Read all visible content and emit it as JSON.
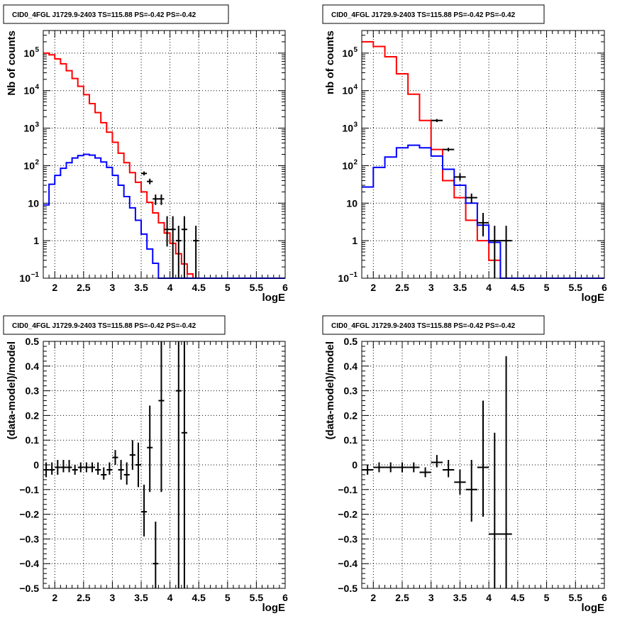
{
  "chart_data": [
    {
      "type": "line",
      "subtype": "step-histogram",
      "title": "CID0_4FGL J1729.9-2403 TS=115.88 PS=-0.42 PS=-0.42",
      "xlabel": "logE",
      "ylabel": "Nb of counts",
      "xlim": [
        1.8,
        6.0
      ],
      "ylim": [
        0.1,
        400000
      ],
      "yscale": "log",
      "grid": true,
      "x_ticks": [
        "2",
        "2.5",
        "3",
        "3.5",
        "4",
        "4.5",
        "5",
        "5.5",
        "6"
      ],
      "x_tick_values": [
        2,
        2.5,
        3,
        3.5,
        4,
        4.5,
        5,
        5.5,
        6
      ],
      "y_tick_values": [
        0.1,
        1,
        10,
        100,
        1000,
        10000,
        100000
      ],
      "y_ticks": [
        "10",
        "1",
        "10",
        "10",
        "10",
        "10",
        "10"
      ],
      "y_tick_exps": [
        "−1",
        "",
        "",
        "2",
        "3",
        "4",
        "5"
      ],
      "bin_edges": [
        1.8,
        1.9,
        2.0,
        2.1,
        2.2,
        2.3,
        2.4,
        2.5,
        2.6,
        2.7,
        2.8,
        2.9,
        3.0,
        3.1,
        3.2,
        3.3,
        3.4,
        3.5,
        3.6,
        3.7,
        3.8,
        3.9,
        4.0,
        4.1,
        4.2,
        4.3,
        4.4,
        4.5,
        4.6,
        4.7,
        4.8,
        4.9,
        5.0,
        5.1,
        5.2,
        5.3,
        5.4,
        5.5,
        5.6,
        5.7,
        5.8,
        5.9,
        6.0
      ],
      "series": [
        {
          "color": "#ff0000",
          "values": [
            100000,
            90000,
            70000,
            52000,
            34000,
            21000,
            13000,
            7800,
            4500,
            2600,
            1400,
            780,
            420,
            215,
            120,
            65,
            36,
            20,
            10.5,
            5.5,
            3.0,
            1.6,
            0.85,
            0.45,
            0.24,
            0.13,
            0.1,
            0.1,
            0.1,
            0.1,
            0.1,
            0.1,
            0.1,
            0.1,
            0.1,
            0.1,
            0.1,
            0.1,
            0.1,
            0.1,
            0.1,
            0.1
          ]
        },
        {
          "color": "#0000ff",
          "values": [
            9,
            32,
            55,
            85,
            120,
            160,
            185,
            200,
            190,
            160,
            125,
            90,
            55,
            30,
            15,
            7.5,
            3.5,
            1.5,
            0.6,
            0.25,
            0.1,
            0.1,
            0.1,
            0.1,
            0.1,
            0.1,
            0.1,
            0.1,
            0.1,
            0.1,
            0.1,
            0.1,
            0.1,
            0.1,
            0.1,
            0.1,
            0.1,
            0.1,
            0.1,
            0.1,
            0.1,
            0.1
          ]
        }
      ],
      "data_points": [
        {
          "x": 3.55,
          "y": 62,
          "xerr": 0.05,
          "ylo": 55,
          "yhi": 70
        },
        {
          "x": 3.65,
          "y": 38,
          "xerr": 0.05,
          "ylo": 32,
          "yhi": 45
        },
        {
          "x": 3.75,
          "y": 13,
          "xerr": 0.05,
          "ylo": 9,
          "yhi": 17
        },
        {
          "x": 3.85,
          "y": 13,
          "xerr": 0.05,
          "ylo": 9,
          "yhi": 17
        },
        {
          "x": 3.95,
          "y": 2,
          "xerr": 0.05,
          "ylo": 0.7,
          "yhi": 4.5
        },
        {
          "x": 4.05,
          "y": 2,
          "xerr": 0.05,
          "ylo": 0.1,
          "yhi": 4.5
        },
        {
          "x": 4.15,
          "y": 1,
          "xerr": 0.05,
          "ylo": 0.1,
          "yhi": 2.5
        },
        {
          "x": 4.25,
          "y": 2,
          "xerr": 0.05,
          "ylo": 0.1,
          "yhi": 4.5
        },
        {
          "x": 4.45,
          "y": 1,
          "xerr": 0.05,
          "ylo": 0.1,
          "yhi": 2.5
        }
      ]
    },
    {
      "type": "line",
      "subtype": "step-histogram",
      "title": "CID0_4FGL J1729.9-2403 TS=115.88 PS=-0.42 PS=-0.42",
      "xlabel": "logE",
      "ylabel": "nb of counts",
      "xlim": [
        1.8,
        6.0
      ],
      "ylim": [
        0.1,
        400000
      ],
      "yscale": "log",
      "grid": true,
      "x_ticks": [
        "2",
        "2.5",
        "3",
        "3.5",
        "4",
        "4.5",
        "5",
        "5.5",
        "6"
      ],
      "x_tick_values": [
        2,
        2.5,
        3,
        3.5,
        4,
        4.5,
        5,
        5.5,
        6
      ],
      "y_tick_values": [
        0.1,
        1,
        10,
        100,
        1000,
        10000,
        100000
      ],
      "y_ticks": [
        "10",
        "1",
        "10",
        "10",
        "10",
        "10",
        "10"
      ],
      "y_tick_exps": [
        "−1",
        "",
        "",
        "2",
        "3",
        "4",
        "5"
      ],
      "bin_edges": [
        1.8,
        2.0,
        2.2,
        2.4,
        2.6,
        2.8,
        3.0,
        3.2,
        3.4,
        3.6,
        3.8,
        4.0,
        4.2,
        4.4,
        4.6,
        4.8,
        5.0,
        5.2,
        5.4,
        5.6,
        5.8,
        6.0
      ],
      "series": [
        {
          "color": "#ff0000",
          "values": [
            200000,
            150000,
            80000,
            28000,
            8000,
            1600,
            270,
            40,
            14,
            3.5,
            1.0,
            0.3,
            0.1,
            0.1,
            0.1,
            0.1,
            0.1,
            0.1,
            0.1,
            0.1,
            0.1
          ]
        },
        {
          "color": "#0000ff",
          "values": [
            27,
            90,
            170,
            300,
            350,
            300,
            180,
            80,
            30,
            10,
            2.6,
            0.9,
            0.1,
            0.1,
            0.1,
            0.1,
            0.1,
            0.1,
            0.1,
            0.1,
            0.1
          ]
        }
      ],
      "data_points": [
        {
          "x": 3.1,
          "y": 1600,
          "xerr": 0.1,
          "ylo": 1450,
          "yhi": 1750
        },
        {
          "x": 3.3,
          "y": 270,
          "xerr": 0.1,
          "ylo": 240,
          "yhi": 300
        },
        {
          "x": 3.5,
          "y": 50,
          "xerr": 0.1,
          "ylo": 40,
          "yhi": 62
        },
        {
          "x": 3.7,
          "y": 14,
          "xerr": 0.1,
          "ylo": 10,
          "yhi": 18
        },
        {
          "x": 3.9,
          "y": 3,
          "xerr": 0.1,
          "ylo": 1.3,
          "yhi": 5.5
        },
        {
          "x": 4.1,
          "y": 1,
          "xerr": 0.1,
          "ylo": 0.1,
          "yhi": 2.5
        },
        {
          "x": 4.3,
          "y": 1,
          "xerr": 0.1,
          "ylo": 0.1,
          "yhi": 2.5
        }
      ]
    },
    {
      "type": "scatter",
      "subtype": "errorbar",
      "title": "CID0_4FGL J1729.9-2403 TS=115.88 PS=-0.42 PS=-0.42",
      "xlabel": "logE",
      "ylabel": "(data-model)/model",
      "xlim": [
        1.8,
        6.0
      ],
      "ylim": [
        -0.5,
        0.5
      ],
      "yscale": "linear",
      "grid": true,
      "x_ticks": [
        "2",
        "2.5",
        "3",
        "3.5",
        "4",
        "4.5",
        "5",
        "5.5",
        "6"
      ],
      "x_tick_values": [
        2,
        2.5,
        3,
        3.5,
        4,
        4.5,
        5,
        5.5,
        6
      ],
      "y_tick_values": [
        -0.5,
        -0.4,
        -0.3,
        -0.2,
        -0.1,
        0,
        0.1,
        0.2,
        0.3,
        0.4,
        0.5
      ],
      "y_ticks": [
        "−0.5",
        "−0.4",
        "−0.3",
        "−0.2",
        "−0.1",
        "0",
        "0.1",
        "0.2",
        "0.3",
        "0.4",
        "0.5"
      ],
      "points": [
        {
          "x": 1.85,
          "y": -0.02,
          "xerr": 0.05,
          "ylo": -0.05,
          "yhi": 0.01
        },
        {
          "x": 1.95,
          "y": -0.02,
          "xerr": 0.05,
          "ylo": -0.04,
          "yhi": 0.01
        },
        {
          "x": 2.05,
          "y": -0.01,
          "xerr": 0.05,
          "ylo": -0.04,
          "yhi": 0.02
        },
        {
          "x": 2.15,
          "y": -0.01,
          "xerr": 0.05,
          "ylo": -0.03,
          "yhi": 0.02
        },
        {
          "x": 2.25,
          "y": -0.01,
          "xerr": 0.05,
          "ylo": -0.03,
          "yhi": 0.02
        },
        {
          "x": 2.35,
          "y": -0.02,
          "xerr": 0.05,
          "ylo": -0.04,
          "yhi": 0.0
        },
        {
          "x": 2.45,
          "y": -0.01,
          "xerr": 0.05,
          "ylo": -0.03,
          "yhi": 0.01
        },
        {
          "x": 2.55,
          "y": -0.01,
          "xerr": 0.05,
          "ylo": -0.03,
          "yhi": 0.01
        },
        {
          "x": 2.65,
          "y": -0.01,
          "xerr": 0.05,
          "ylo": -0.03,
          "yhi": 0.01
        },
        {
          "x": 2.75,
          "y": -0.02,
          "xerr": 0.05,
          "ylo": -0.04,
          "yhi": 0.01
        },
        {
          "x": 2.85,
          "y": -0.04,
          "xerr": 0.05,
          "ylo": -0.06,
          "yhi": -0.01
        },
        {
          "x": 2.95,
          "y": -0.02,
          "xerr": 0.05,
          "ylo": -0.04,
          "yhi": 0.01
        },
        {
          "x": 3.05,
          "y": 0.03,
          "xerr": 0.05,
          "ylo": 0.0,
          "yhi": 0.06
        },
        {
          "x": 3.15,
          "y": -0.02,
          "xerr": 0.05,
          "ylo": -0.06,
          "yhi": 0.02
        },
        {
          "x": 3.25,
          "y": -0.04,
          "xerr": 0.05,
          "ylo": -0.08,
          "yhi": 0.01
        },
        {
          "x": 3.35,
          "y": 0.04,
          "xerr": 0.05,
          "ylo": -0.02,
          "yhi": 0.1
        },
        {
          "x": 3.45,
          "y": 0.0,
          "xerr": 0.05,
          "ylo": -0.09,
          "yhi": 0.09
        },
        {
          "x": 3.55,
          "y": -0.19,
          "xerr": 0.05,
          "ylo": -0.29,
          "yhi": -0.08
        },
        {
          "x": 3.65,
          "y": 0.07,
          "xerr": 0.05,
          "ylo": -0.11,
          "yhi": 0.24
        },
        {
          "x": 3.75,
          "y": -0.4,
          "xerr": 0.05,
          "ylo": -0.5,
          "yhi": -0.23
        },
        {
          "x": 3.85,
          "y": 0.26,
          "xerr": 0.05,
          "ylo": -0.11,
          "yhi": 0.5
        },
        {
          "x": 4.15,
          "y": 0.3,
          "xerr": 0.05,
          "ylo": -0.5,
          "yhi": 0.5
        },
        {
          "x": 4.25,
          "y": 0.13,
          "xerr": 0.05,
          "ylo": -0.5,
          "yhi": 0.5
        }
      ]
    },
    {
      "type": "scatter",
      "subtype": "errorbar",
      "title": "CID0_4FGL J1729.9-2403 TS=115.88 PS=-0.42 PS=-0.42",
      "xlabel": "logE",
      "ylabel": "(data-model)/model",
      "xlim": [
        1.8,
        6.0
      ],
      "ylim": [
        -0.5,
        0.5
      ],
      "yscale": "linear",
      "grid": true,
      "x_ticks": [
        "2",
        "2.5",
        "3",
        "3.5",
        "4",
        "4.5",
        "5",
        "5.5",
        "6"
      ],
      "x_tick_values": [
        2,
        2.5,
        3,
        3.5,
        4,
        4.5,
        5,
        5.5,
        6
      ],
      "y_tick_values": [
        -0.5,
        -0.4,
        -0.3,
        -0.2,
        -0.1,
        0,
        0.1,
        0.2,
        0.3,
        0.4,
        0.5
      ],
      "y_ticks": [
        "−0.5",
        "−0.4",
        "−0.3",
        "−0.2",
        "−0.1",
        "0",
        "0.1",
        "0.2",
        "0.3",
        "0.4",
        "0.5"
      ],
      "points": [
        {
          "x": 1.9,
          "y": -0.02,
          "xerr": 0.1,
          "ylo": -0.04,
          "yhi": 0.0
        },
        {
          "x": 2.1,
          "y": -0.01,
          "xerr": 0.1,
          "ylo": -0.03,
          "yhi": 0.01
        },
        {
          "x": 2.3,
          "y": -0.01,
          "xerr": 0.1,
          "ylo": -0.03,
          "yhi": 0.01
        },
        {
          "x": 2.5,
          "y": -0.01,
          "xerr": 0.1,
          "ylo": -0.03,
          "yhi": 0.01
        },
        {
          "x": 2.7,
          "y": -0.01,
          "xerr": 0.1,
          "ylo": -0.03,
          "yhi": 0.01
        },
        {
          "x": 2.9,
          "y": -0.03,
          "xerr": 0.1,
          "ylo": -0.05,
          "yhi": -0.01
        },
        {
          "x": 3.1,
          "y": 0.01,
          "xerr": 0.1,
          "ylo": -0.01,
          "yhi": 0.04
        },
        {
          "x": 3.3,
          "y": -0.02,
          "xerr": 0.1,
          "ylo": -0.05,
          "yhi": 0.02
        },
        {
          "x": 3.5,
          "y": -0.07,
          "xerr": 0.1,
          "ylo": -0.12,
          "yhi": -0.02
        },
        {
          "x": 3.7,
          "y": -0.1,
          "xerr": 0.1,
          "ylo": -0.23,
          "yhi": 0.02
        },
        {
          "x": 3.9,
          "y": -0.01,
          "xerr": 0.1,
          "ylo": -0.21,
          "yhi": 0.26
        },
        {
          "x": 4.1,
          "y": -0.28,
          "xerr": 0.1,
          "ylo": -0.5,
          "yhi": 0.13
        },
        {
          "x": 4.3,
          "y": -0.28,
          "xerr": 0.1,
          "ylo": -0.5,
          "yhi": 0.44
        }
      ]
    }
  ]
}
